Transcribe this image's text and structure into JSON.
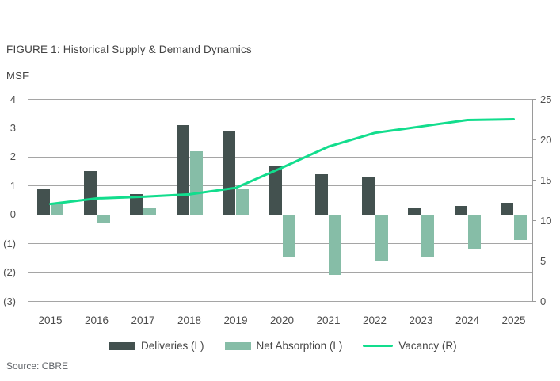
{
  "header": {
    "title": "FIGURE 1: Historical Supply & Demand Dynamics",
    "unit_label": "MSF"
  },
  "footer": {
    "source": "Source: CBRE"
  },
  "colors": {
    "deliveries": "#43514F",
    "net_absorption": "#86BDA7",
    "vacancy_line": "#12DD8D",
    "gridline": "#A5A5A5",
    "axis_text": "#4F4F4F"
  },
  "chart_data": {
    "type": "bar",
    "subtype": "combo-bar-line",
    "title": "FIGURE 1: Historical Supply & Demand Dynamics",
    "xlabel": "",
    "ylabel": "MSF",
    "grid": "horizontal",
    "legend_position": "bottom",
    "categories": [
      "2015",
      "2016",
      "2017",
      "2018",
      "2019",
      "2020",
      "2021",
      "2022",
      "2023",
      "2024",
      "2025"
    ],
    "series": [
      {
        "name": "Deliveries (L)",
        "type": "bar",
        "axis": "left",
        "color": "#43514F",
        "values": [
          0.9,
          1.5,
          0.7,
          3.1,
          2.9,
          1.7,
          1.4,
          1.3,
          0.2,
          0.3,
          0.4
        ]
      },
      {
        "name": "Net Absorption (L)",
        "type": "bar",
        "axis": "left",
        "color": "#86BDA7",
        "values": [
          0.4,
          -0.3,
          0.2,
          2.2,
          0.9,
          -1.5,
          -2.1,
          -1.6,
          -1.5,
          -1.2,
          -0.9
        ]
      },
      {
        "name": "Vacancy (R)",
        "type": "line",
        "axis": "right",
        "color": "#12DD8D",
        "values": [
          12.0,
          12.7,
          12.9,
          13.2,
          14.0,
          16.5,
          19.1,
          20.8,
          21.6,
          22.4,
          22.5
        ]
      }
    ],
    "left_axis": {
      "min": -3,
      "max": 4,
      "tick_labels": [
        "4",
        "3",
        "2",
        "1",
        "0",
        "(1)",
        "(2)",
        "(3)"
      ]
    },
    "right_axis": {
      "min": 0,
      "max": 25,
      "tick_labels": [
        "25",
        "20",
        "15",
        "10",
        "5",
        "0"
      ]
    }
  }
}
